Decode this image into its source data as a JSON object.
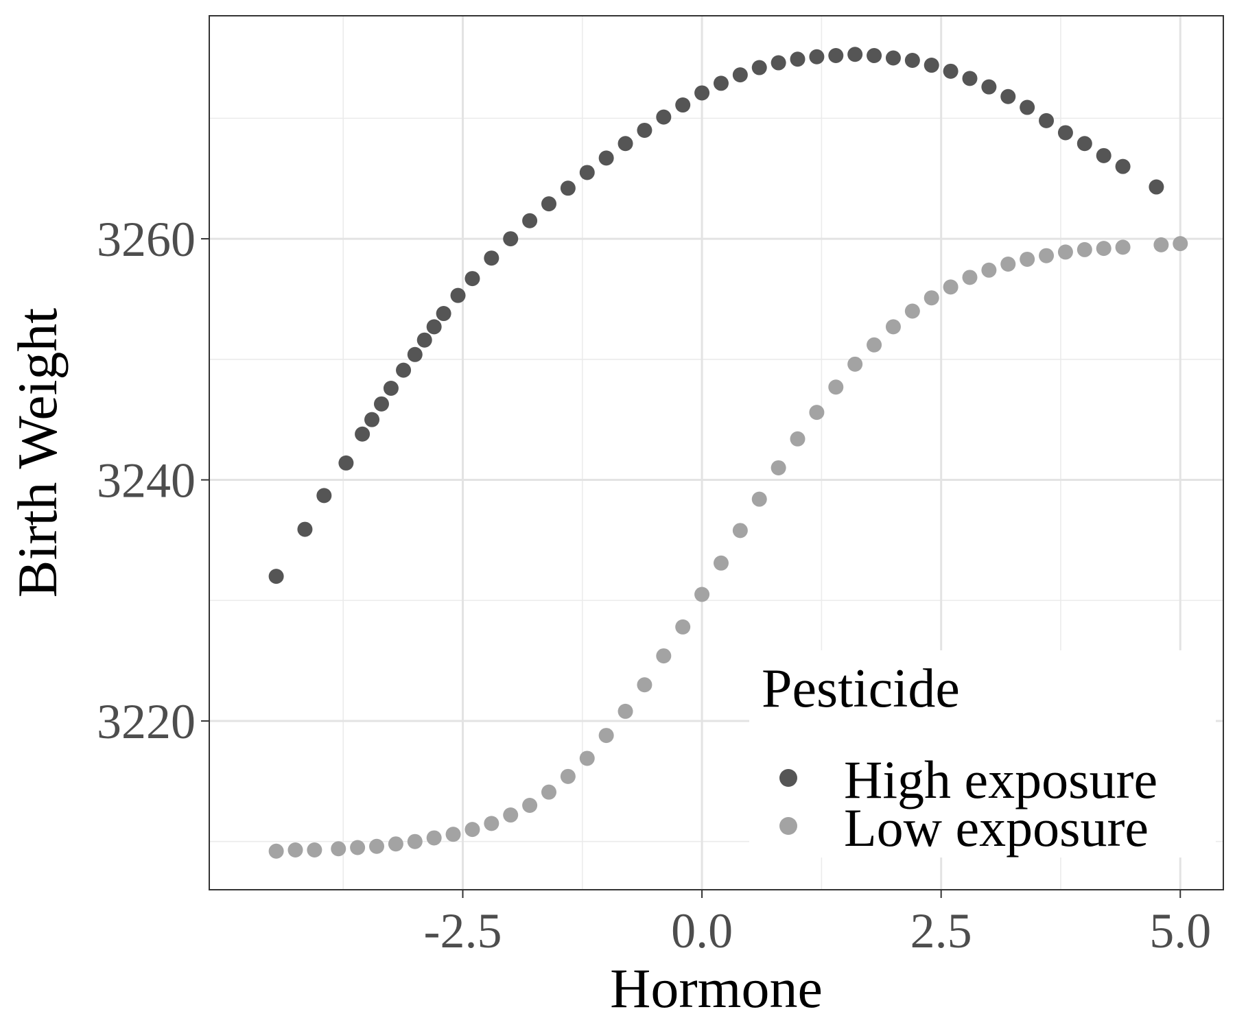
{
  "chart_data": {
    "type": "scatter",
    "xlabel": "Hormone",
    "ylabel": "Birth Weight",
    "xlim": [
      -5.15,
      5.45
    ],
    "ylim": [
      3206,
      3278.5
    ],
    "x_ticks": [
      -2.5,
      0.0,
      2.5,
      5.0
    ],
    "x_tick_labels": [
      "-2.5",
      "0.0",
      "2.5",
      "5.0"
    ],
    "x_minor_ticks": [
      -3.75,
      -1.25,
      1.25,
      3.75
    ],
    "y_ticks": [
      3220,
      3240,
      3260
    ],
    "y_tick_labels": [
      "3220",
      "3240",
      "3260"
    ],
    "y_minor_ticks": [
      3210,
      3230,
      3250,
      3270
    ],
    "grid": true,
    "theme": "bw",
    "legend": {
      "title": "Pesticide",
      "position": "bottom-right-inside"
    },
    "series": [
      {
        "name": "High exposure",
        "color": "#555555",
        "x": [
          -4.45,
          -4.15,
          -3.95,
          -3.72,
          -3.55,
          -3.45,
          -3.35,
          -3.25,
          -3.12,
          -3.0,
          -2.9,
          -2.8,
          -2.7,
          -2.55,
          -2.4,
          -2.2,
          -2.0,
          -1.8,
          -1.6,
          -1.4,
          -1.2,
          -1.0,
          -0.8,
          -0.6,
          -0.4,
          -0.2,
          0.0,
          0.2,
          0.4,
          0.6,
          0.8,
          1.0,
          1.2,
          1.4,
          1.6,
          1.8,
          2.0,
          2.2,
          2.4,
          2.6,
          2.8,
          3.0,
          3.2,
          3.4,
          3.6,
          3.8,
          4.0,
          4.2,
          4.4,
          4.75
        ],
        "y": [
          3232.0,
          3235.9,
          3238.7,
          3241.4,
          3243.8,
          3245.0,
          3246.3,
          3247.6,
          3249.1,
          3250.4,
          3251.6,
          3252.7,
          3253.8,
          3255.3,
          3256.7,
          3258.4,
          3260.0,
          3261.5,
          3262.9,
          3264.2,
          3265.5,
          3266.7,
          3267.9,
          3269.0,
          3270.1,
          3271.1,
          3272.1,
          3272.9,
          3273.6,
          3274.2,
          3274.6,
          3274.9,
          3275.1,
          3275.2,
          3275.3,
          3275.2,
          3275.0,
          3274.8,
          3274.4,
          3273.9,
          3273.3,
          3272.6,
          3271.8,
          3270.9,
          3269.8,
          3268.8,
          3267.9,
          3266.9,
          3266.0,
          3264.3
        ]
      },
      {
        "name": "Low exposure",
        "color": "#a3a3a3",
        "x": [
          -4.45,
          -4.25,
          -4.05,
          -3.8,
          -3.6,
          -3.4,
          -3.2,
          -3.0,
          -2.8,
          -2.6,
          -2.4,
          -2.2,
          -2.0,
          -1.8,
          -1.6,
          -1.4,
          -1.2,
          -1.0,
          -0.8,
          -0.6,
          -0.4,
          -0.2,
          0.0,
          0.2,
          0.4,
          0.6,
          0.8,
          1.0,
          1.2,
          1.4,
          1.6,
          1.8,
          2.0,
          2.2,
          2.4,
          2.6,
          2.8,
          3.0,
          3.2,
          3.4,
          3.6,
          3.8,
          4.0,
          4.2,
          4.4,
          4.8,
          5.0
        ],
        "y": [
          3209.2,
          3209.3,
          3209.3,
          3209.4,
          3209.5,
          3209.6,
          3209.8,
          3210.0,
          3210.3,
          3210.6,
          3211.0,
          3211.5,
          3212.2,
          3213.0,
          3214.1,
          3215.4,
          3216.9,
          3218.8,
          3220.8,
          3223.0,
          3225.4,
          3227.8,
          3230.5,
          3233.1,
          3235.8,
          3238.4,
          3241.0,
          3243.4,
          3245.6,
          3247.7,
          3249.6,
          3251.2,
          3252.7,
          3254.0,
          3255.1,
          3256.0,
          3256.8,
          3257.4,
          3257.9,
          3258.3,
          3258.6,
          3258.9,
          3259.1,
          3259.2,
          3259.3,
          3259.5,
          3259.6
        ]
      }
    ]
  }
}
